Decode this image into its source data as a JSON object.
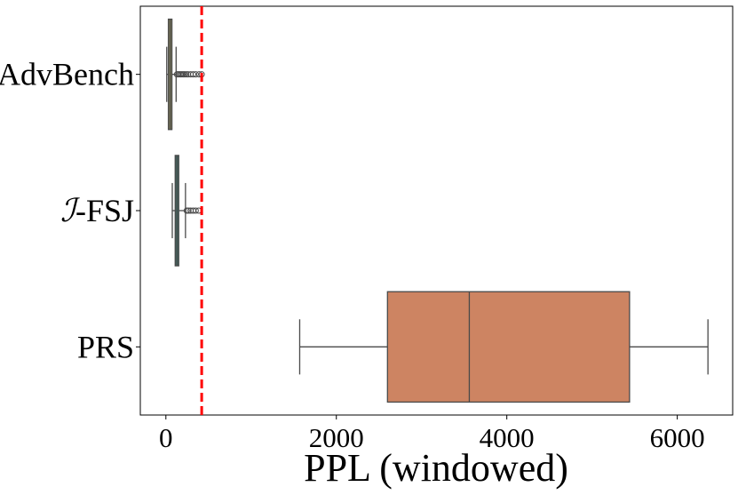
{
  "chart_data": {
    "type": "boxplot",
    "orientation": "horizontal",
    "xlabel": "PPL (windowed)",
    "ylabel": "",
    "xlim": [
      -300,
      6650
    ],
    "xticks": [
      0,
      2000,
      4000,
      6000
    ],
    "xtick_labels": [
      "0",
      "2000",
      "4000",
      "6000"
    ],
    "grid": false,
    "categories": [
      {
        "prefix": "",
        "label": "AdvBench"
      },
      {
        "prefix": "ℐ",
        "label": "-FSJ"
      },
      {
        "prefix": "",
        "label": "PRS"
      }
    ],
    "boxes": [
      {
        "name": "AdvBench",
        "whisker_low": 10,
        "q1": 35,
        "median": 50,
        "q3": 65,
        "whisker_high": 120,
        "outliers": [
          130,
          145,
          160,
          175,
          190,
          205,
          220,
          240,
          260,
          290,
          320,
          350,
          390,
          420
        ],
        "color": "#8c8a5e"
      },
      {
        "name": "I-FSJ",
        "whisker_low": 75,
        "q1": 110,
        "median": 130,
        "q3": 150,
        "whisker_high": 230,
        "outliers": [
          245,
          265,
          290,
          320,
          350,
          385
        ],
        "color": "#3d6e68"
      },
      {
        "name": "PRS",
        "whisker_low": 1570,
        "q1": 2600,
        "median": 3560,
        "q3": 5440,
        "whisker_high": 6360,
        "outliers": [],
        "color": "#cd8462"
      }
    ],
    "reference_line": {
      "x": 420,
      "color": "#ff0000",
      "style": "dashed"
    }
  }
}
